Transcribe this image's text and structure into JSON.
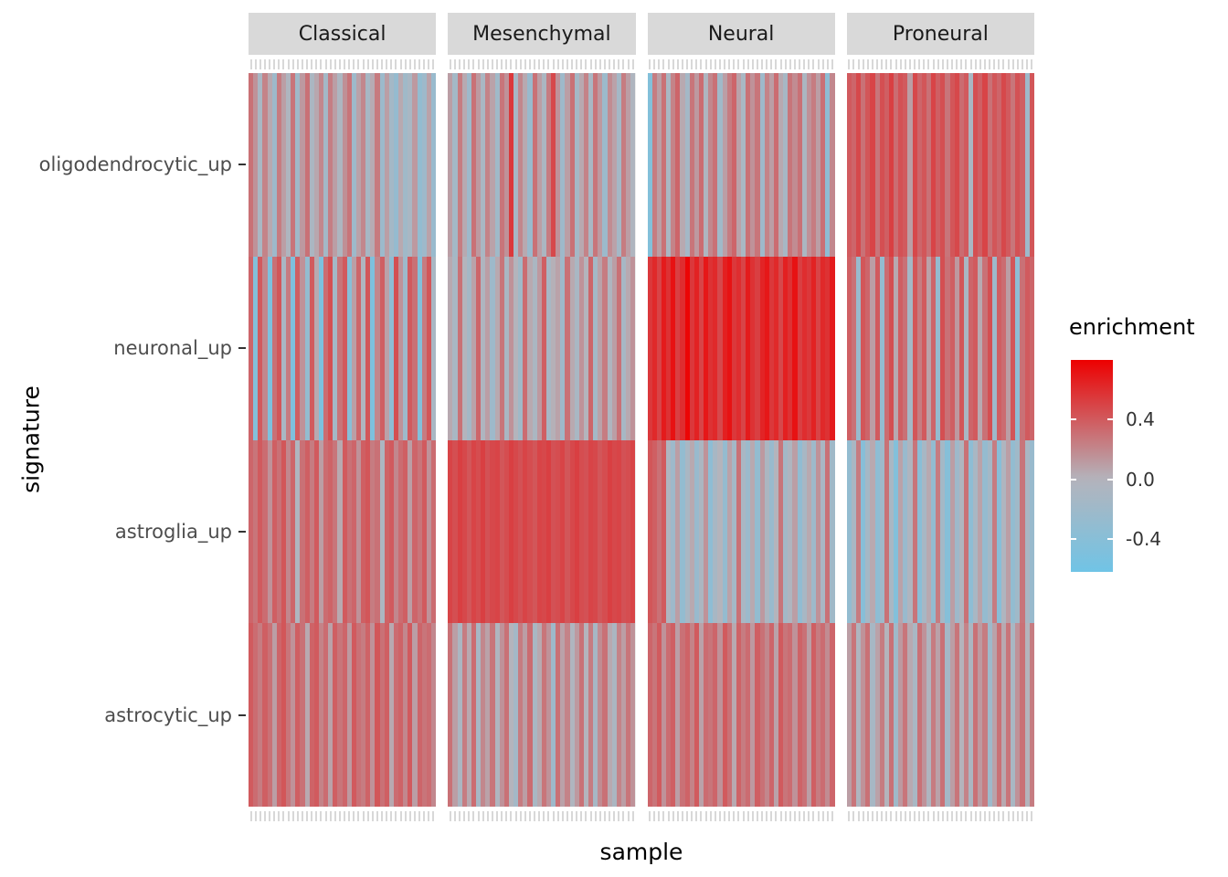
{
  "chart_data": {
    "type": "heatmap",
    "title": "",
    "xlabel": "sample",
    "ylabel": "signature",
    "rows": [
      "oligodendrocytic_up",
      "neuronal_up",
      "astroglia_up",
      "astrocytic_up"
    ],
    "layout": {
      "grid": false,
      "legend_position": "right",
      "facet_labels": "top",
      "facet_strip_color": "#d9d9d9"
    },
    "legend": {
      "title": "enrichment",
      "tick_labels": [
        "0.4",
        "0.0",
        "-0.4"
      ],
      "tick_values": [
        0.4,
        0.0,
        -0.4
      ],
      "domain": [
        -0.62,
        0.8
      ],
      "low": "#70C4E6",
      "mid": "#B4B4BC",
      "high": "#ED0000"
    },
    "facets": [
      {
        "name": "Classical",
        "values": [
          [
            0.3,
            0.15,
            -0.1,
            0.22,
            0.05,
            -0.2,
            0.25,
            0.1,
            -0.05,
            0.28,
            -0.18,
            0.12,
            0.3,
            -0.08,
            0.06,
            0.2,
            -0.15,
            0.24,
            0.1,
            -0.06,
            0.16,
            0.28,
            -0.2,
            0.08,
            0.2,
            -0.12,
            0.04,
            0.26,
            -0.22,
            0.1,
            -0.15,
            -0.28,
            0.05,
            -0.18,
            -0.1,
            0.12,
            -0.3,
            -0.2,
            0.08,
            -0.25
          ],
          [
            0.35,
            -0.45,
            0.4,
            0.2,
            -0.5,
            0.3,
            0.42,
            -0.1,
            0.25,
            -0.48,
            0.38,
            0.15,
            -0.3,
            0.4,
            0.05,
            -0.52,
            0.32,
            0.45,
            -0.15,
            0.28,
            0.4,
            -0.4,
            0.1,
            0.35,
            -0.05,
            0.42,
            -0.5,
            0.2,
            0.38,
            0.08,
            -0.35,
            0.45,
            0.15,
            -0.2,
            0.4,
            0.3,
            -0.45,
            0.25,
            0.42,
            -0.1
          ],
          [
            0.35,
            0.28,
            0.4,
            0.32,
            0.15,
            0.38,
            0.3,
            0.42,
            0.2,
            0.35,
            -0.05,
            0.3,
            0.38,
            0.25,
            0.4,
            0.1,
            0.32,
            0.36,
            0.28,
            0.05,
            0.4,
            0.3,
            0.35,
            0.15,
            0.38,
            0.42,
            0.25,
            0.3,
            -0.08,
            0.36,
            0.4,
            0.2,
            0.32,
            0.38,
            0.1,
            0.35,
            0.28,
            0.4,
            0.15,
            0.32
          ],
          [
            0.4,
            0.32,
            0.25,
            0.38,
            0.3,
            0.1,
            0.35,
            0.42,
            0.28,
            0.15,
            0.38,
            0.3,
            0.05,
            0.36,
            0.4,
            0.22,
            0.32,
            0.08,
            0.38,
            0.28,
            0.35,
            0.12,
            0.4,
            0.3,
            0.25,
            0.36,
            0.15,
            0.42,
            0.3,
            0.38,
            0.05,
            0.32,
            0.36,
            0.2,
            0.4,
            0.1,
            0.35,
            0.28,
            0.32,
            0.2
          ]
        ]
      },
      {
        "name": "Mesenchymal",
        "values": [
          [
            0.1,
            -0.15,
            0.25,
            0.05,
            -0.2,
            0.3,
            0.12,
            -0.1,
            0.22,
            0.08,
            -0.18,
            0.28,
            0.15,
            0.55,
            -0.12,
            0.2,
            0.05,
            -0.25,
            0.3,
            0.1,
            -0.08,
            0.25,
            0.48,
            0.15,
            -0.2,
            0.1,
            0.3,
            -0.15,
            0.05,
            0.22,
            -0.1,
            0.28,
            0.12,
            -0.22,
            0.18,
            0.08,
            -0.15,
            0.25,
            0.1,
            -0.05
          ],
          [
            0.05,
            -0.1,
            0.3,
            0.0,
            -0.15,
            0.08,
            0.35,
            -0.05,
            0.1,
            -0.2,
            0.05,
            0.28,
            -0.1,
            0.15,
            0.0,
            -0.18,
            0.32,
            0.05,
            -0.08,
            0.12,
            0.38,
            -0.12,
            0.02,
            0.08,
            -0.2,
            0.3,
            0.05,
            -0.1,
            0.15,
            0.0,
            0.35,
            -0.15,
            0.08,
            0.25,
            -0.05,
            0.1,
            0.3,
            -0.12,
            0.05,
            0.15
          ],
          [
            0.5,
            0.45,
            0.52,
            0.48,
            0.42,
            0.5,
            0.46,
            0.52,
            0.44,
            0.48,
            0.5,
            0.42,
            0.46,
            0.52,
            0.48,
            0.44,
            0.5,
            0.46,
            0.42,
            0.5,
            0.48,
            0.52,
            0.44,
            0.46,
            0.5,
            0.42,
            0.48,
            0.52,
            0.46,
            0.44,
            0.5,
            0.48,
            0.42,
            0.46,
            0.52,
            0.48,
            0.5,
            0.44,
            0.46,
            0.5
          ],
          [
            0.3,
            0.1,
            -0.08,
            0.25,
            0.05,
            0.32,
            -0.12,
            0.2,
            0.08,
            0.28,
            -0.05,
            0.15,
            0.3,
            0.0,
            -0.15,
            0.25,
            0.1,
            0.32,
            -0.1,
            0.05,
            0.28,
            0.15,
            -0.2,
            0.3,
            0.08,
            0.22,
            -0.05,
            0.12,
            0.3,
            0.0,
            0.25,
            -0.12,
            0.18,
            0.3,
            0.05,
            -0.08,
            0.22,
            0.1,
            0.28,
            0.15
          ]
        ]
      },
      {
        "name": "Neural",
        "values": [
          [
            -0.45,
            0.25,
            0.1,
            0.3,
            -0.1,
            0.22,
            0.35,
            0.05,
            -0.15,
            0.28,
            0.12,
            0.32,
            -0.05,
            0.2,
            0.3,
            -0.18,
            0.1,
            0.25,
            0.35,
            0.08,
            -0.1,
            0.3,
            0.15,
            0.28,
            -0.2,
            0.22,
            0.1,
            0.32,
            0.05,
            -0.12,
            0.28,
            0.18,
            0.3,
            -0.08,
            0.15,
            0.25,
            0.1,
            0.3,
            -0.35,
            0.2
          ],
          [
            0.55,
            0.62,
            0.5,
            0.68,
            0.58,
            0.72,
            0.52,
            0.6,
            0.78,
            0.55,
            0.65,
            0.5,
            0.7,
            0.58,
            0.62,
            0.48,
            0.66,
            0.72,
            0.55,
            0.6,
            0.5,
            0.68,
            0.58,
            0.52,
            0.64,
            0.7,
            0.55,
            0.62,
            0.48,
            0.66,
            0.58,
            0.72,
            0.52,
            0.6,
            0.55,
            0.65,
            0.5,
            0.62,
            0.58,
            0.68
          ],
          [
            0.42,
            0.38,
            0.3,
            0.4,
            -0.05,
            -0.2,
            0.1,
            -0.3,
            -0.1,
            0.05,
            -0.25,
            -0.08,
            0.15,
            -0.35,
            -0.12,
            0.0,
            -0.28,
            0.08,
            -0.15,
            0.3,
            -0.1,
            -0.22,
            0.05,
            -0.3,
            0.12,
            -0.08,
            -0.25,
            0.0,
            0.28,
            -0.15,
            -0.05,
            0.1,
            -0.32,
            -0.12,
            0.05,
            -0.2,
            0.15,
            -0.1,
            0.3,
            -0.18
          ],
          [
            0.35,
            0.28,
            0.4,
            0.15,
            0.32,
            0.38,
            0.1,
            0.3,
            0.36,
            0.22,
            0.4,
            0.08,
            0.32,
            0.28,
            0.35,
            0.15,
            0.4,
            0.3,
            0.05,
            0.36,
            0.25,
            0.32,
            0.12,
            0.38,
            0.3,
            0.2,
            0.35,
            0.08,
            0.4,
            0.28,
            0.32,
            0.15,
            0.36,
            0.3,
            0.1,
            0.38,
            0.25,
            0.32,
            0.18,
            0.35
          ]
        ]
      },
      {
        "name": "Proneural",
        "values": [
          [
            0.4,
            0.35,
            0.48,
            0.3,
            0.42,
            0.5,
            0.28,
            0.45,
            0.38,
            0.52,
            0.32,
            0.44,
            0.4,
            0.1,
            0.48,
            0.35,
            0.42,
            0.3,
            0.5,
            0.38,
            0.45,
            0.28,
            0.42,
            0.48,
            0.32,
            0.4,
            -0.1,
            0.45,
            0.38,
            0.5,
            0.3,
            0.42,
            0.35,
            0.48,
            0.4,
            0.28,
            0.44,
            0.38,
            -0.2,
            0.42
          ],
          [
            0.38,
            0.3,
            -0.25,
            0.42,
            0.35,
            0.1,
            0.4,
            -0.3,
            0.32,
            0.45,
            0.05,
            0.38,
            0.3,
            -0.15,
            0.42,
            0.25,
            0.4,
            0.08,
            0.35,
            -0.28,
            0.45,
            0.3,
            0.38,
            0.12,
            0.42,
            -0.1,
            0.35,
            0.4,
            0.05,
            0.3,
            0.45,
            -0.2,
            0.38,
            0.32,
            0.1,
            0.42,
            -0.35,
            0.3,
            0.4,
            0.35
          ],
          [
            -0.3,
            -0.1,
            0.25,
            -0.4,
            -0.15,
            0.05,
            -0.35,
            -0.2,
            0.3,
            -0.1,
            -0.45,
            0.08,
            -0.25,
            -0.05,
            0.28,
            -0.38,
            -0.12,
            0.05,
            -0.3,
            0.25,
            -0.15,
            -0.42,
            0.1,
            -0.2,
            -0.05,
            0.3,
            -0.35,
            -0.1,
            0.08,
            -0.28,
            -0.15,
            0.25,
            -0.4,
            -0.05,
            0.1,
            -0.3,
            -0.18,
            0.28,
            -0.1,
            -0.25
          ],
          [
            0.1,
            0.28,
            -0.05,
            0.15,
            0.3,
            -0.12,
            0.08,
            0.25,
            0.0,
            0.3,
            -0.18,
            0.12,
            0.28,
            0.05,
            -0.1,
            0.3,
            0.15,
            -0.05,
            0.25,
            0.08,
            0.3,
            -0.15,
            0.1,
            0.28,
            0.0,
            0.22,
            -0.08,
            0.3,
            0.12,
            0.25,
            -0.2,
            0.08,
            0.3,
            0.05,
            0.28,
            -0.1,
            0.15,
            0.3,
            0.0,
            0.25
          ]
        ]
      }
    ]
  }
}
